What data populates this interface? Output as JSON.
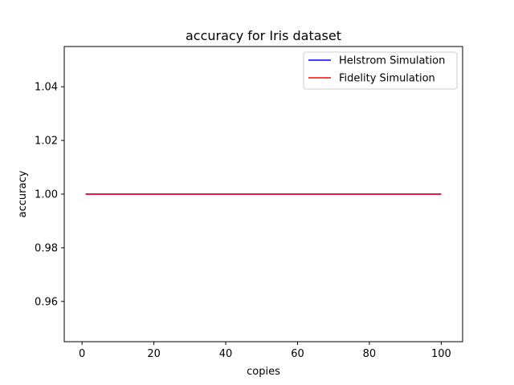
{
  "chart_data": {
    "type": "line",
    "title": "accuracy for Iris dataset",
    "xlabel": "copies",
    "ylabel": "accuracy",
    "xlim": [
      -4.95,
      105.95
    ],
    "ylim": [
      0.945,
      1.055
    ],
    "xticks": [
      0,
      20,
      40,
      60,
      80,
      100
    ],
    "xtick_labels": [
      "0",
      "20",
      "40",
      "60",
      "80",
      "100"
    ],
    "yticks": [
      0.96,
      0.98,
      1.0,
      1.02,
      1.04
    ],
    "ytick_labels": [
      "0.96",
      "0.98",
      "1.00",
      "1.02",
      "1.04"
    ],
    "grid": false,
    "legend_position": "top-right",
    "series": [
      {
        "name": "Helstrom Simulation",
        "color": "#0000ff",
        "x": [
          1,
          100
        ],
        "y": [
          1.0,
          1.0
        ]
      },
      {
        "name": "Fidelity Simulation",
        "color": "#ff0000",
        "x": [
          1,
          100
        ],
        "y": [
          1.0,
          1.0
        ]
      }
    ]
  }
}
